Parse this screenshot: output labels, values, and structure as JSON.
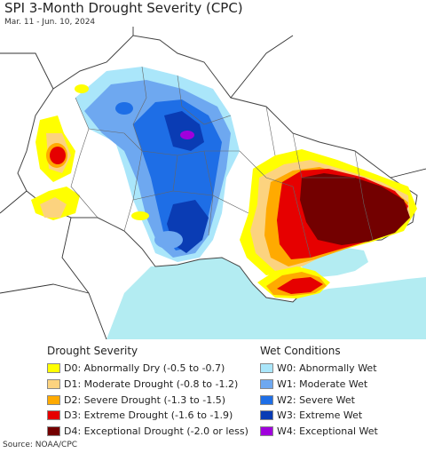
{
  "header": {
    "title": "SPI 3-Month Drought Severity (CPC)",
    "subtitle": "Mar. 11 - Jun. 10, 2024"
  },
  "map": {
    "sea_color": "#b3ecf2",
    "land_color": "#ffffff",
    "border_color": "#555555",
    "regions": [
      "black-sea",
      "sea-of-azov",
      "ukraine-land",
      "western-drought-area",
      "central-wet-area",
      "eastern-drought-area",
      "crimea-drought-area"
    ]
  },
  "legend": {
    "drought": {
      "heading": "Drought Severity",
      "items": [
        {
          "label": "D0: Abnormally Dry (-0.5 to -0.7)",
          "color": "#ffff00"
        },
        {
          "label": "D1: Moderate Drought (-0.8 to -1.2)",
          "color": "#fcd37f"
        },
        {
          "label": "D2: Severe Drought (-1.3 to -1.5)",
          "color": "#ffaa00"
        },
        {
          "label": "D3: Extreme Drought (-1.6 to -1.9)",
          "color": "#e60000"
        },
        {
          "label": "D4: Exceptional Drought (-2.0 or less)",
          "color": "#730000"
        }
      ]
    },
    "wet": {
      "heading": "Wet Conditions",
      "items": [
        {
          "label": "W0: Abnormally Wet",
          "color": "#aae6fa"
        },
        {
          "label": "W1: Moderate Wet",
          "color": "#6ea8f0"
        },
        {
          "label": "W2: Severe Wet",
          "color": "#1e6ee6"
        },
        {
          "label": "W3: Extreme Wet",
          "color": "#0a3cb4"
        },
        {
          "label": "W4: Exceptional Wet",
          "color": "#a000dc"
        }
      ]
    }
  },
  "footer": {
    "source": "Source: NOAA/CPC"
  }
}
